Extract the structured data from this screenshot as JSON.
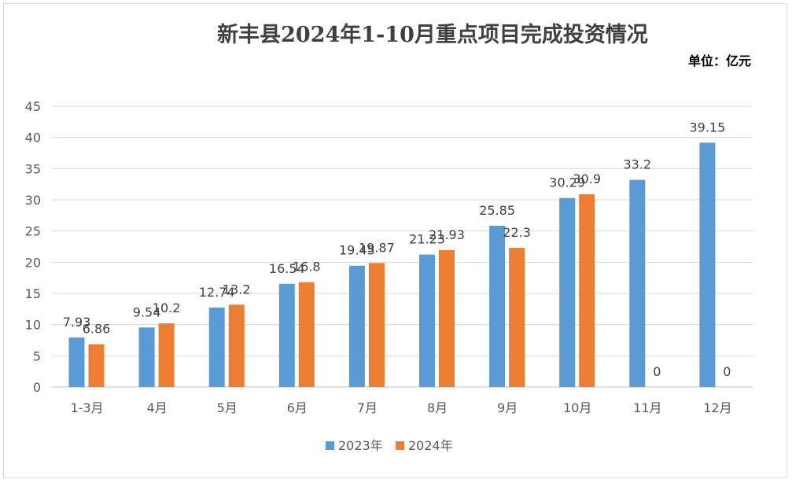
{
  "title": "新丰县2024年1-10月重点项目完成投资情况",
  "unit_label": "单位：亿元",
  "colors": {
    "series_2023": "#5B9BD5",
    "series_2024": "#ED7D31",
    "grid": "#d9d9d9",
    "axis": "#bfbfbf"
  },
  "chart_data": {
    "type": "bar",
    "title": "新丰县2024年1-10月重点项目完成投资情况",
    "xlabel": "",
    "ylabel": "",
    "ylim": [
      0,
      45
    ],
    "yticks": [
      0,
      5,
      10,
      15,
      20,
      25,
      30,
      35,
      40,
      45
    ],
    "grid": true,
    "legend_position": "bottom",
    "categories": [
      "1-3月",
      "4月",
      "5月",
      "6月",
      "7月",
      "8月",
      "9月",
      "10月",
      "11月",
      "12月"
    ],
    "series": [
      {
        "name": "2023年",
        "values": [
          7.93,
          9.54,
          12.74,
          16.54,
          19.45,
          21.23,
          25.85,
          30.29,
          33.2,
          39.15
        ],
        "labels": [
          "7.93",
          "9.54",
          "12.74",
          "16.54",
          "19.45",
          "21.23",
          "25.85",
          "30.29",
          "33.2",
          "39.15"
        ]
      },
      {
        "name": "2024年",
        "values": [
          6.86,
          10.2,
          13.2,
          16.8,
          19.87,
          21.93,
          22.3,
          30.9,
          0,
          0
        ],
        "labels": [
          "6.86",
          "10.2",
          "13.2",
          "16.8",
          "19.87",
          "21.93",
          "22.3",
          "30.9",
          "0",
          "0"
        ]
      }
    ]
  }
}
